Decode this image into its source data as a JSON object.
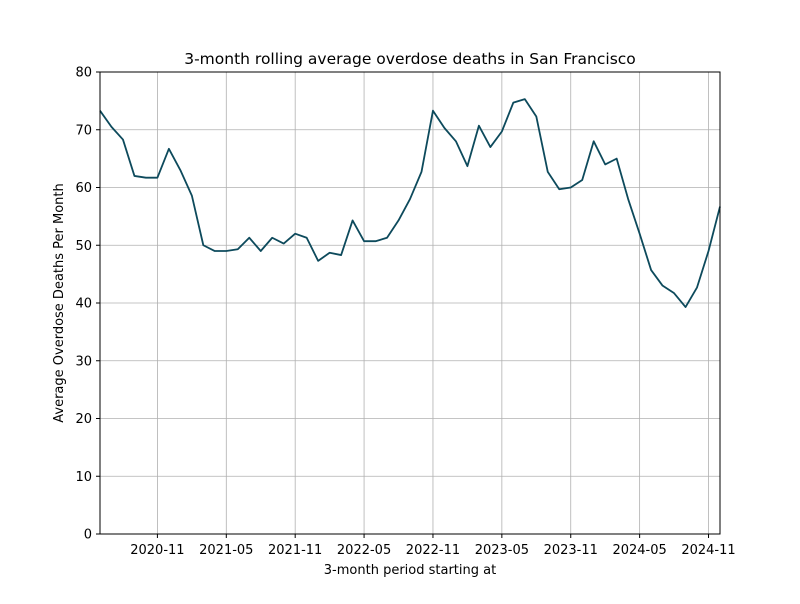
{
  "chart_data": {
    "type": "line",
    "title": "3-month rolling average overdose deaths in San Francisco",
    "xlabel": "3-month period starting at",
    "ylabel": "Average Overdose Deaths Per Month",
    "x": [
      "2020-06",
      "2020-07",
      "2020-08",
      "2020-09",
      "2020-10",
      "2020-11",
      "2020-12",
      "2021-01",
      "2021-02",
      "2021-03",
      "2021-04",
      "2021-05",
      "2021-06",
      "2021-07",
      "2021-08",
      "2021-09",
      "2021-10",
      "2021-11",
      "2021-12",
      "2022-01",
      "2022-02",
      "2022-03",
      "2022-04",
      "2022-05",
      "2022-06",
      "2022-07",
      "2022-08",
      "2022-09",
      "2022-10",
      "2022-11",
      "2022-12",
      "2023-01",
      "2023-02",
      "2023-03",
      "2023-04",
      "2023-05",
      "2023-06",
      "2023-07",
      "2023-08",
      "2023-09",
      "2023-10",
      "2023-11",
      "2023-12",
      "2024-01",
      "2024-02",
      "2024-03",
      "2024-04",
      "2024-05",
      "2024-06",
      "2024-07",
      "2024-08",
      "2024-09",
      "2024-10",
      "2024-11",
      "2024-12"
    ],
    "series": [
      {
        "name": "Average overdose deaths",
        "color": "#0d4a5c",
        "values": [
          73.3,
          70.5,
          68.3,
          62,
          61.7,
          61.7,
          66.7,
          63,
          58.6,
          50,
          49,
          49,
          49.3,
          51.3,
          49,
          51.3,
          50.3,
          52,
          51.3,
          47.3,
          48.7,
          48.3,
          54.3,
          50.7,
          50.7,
          51.3,
          54.3,
          58,
          62.7,
          73.3,
          70.3,
          68,
          63.7,
          70.7,
          67,
          69.7,
          74.7,
          75.3,
          72.3,
          62.7,
          59.7,
          60,
          61.3,
          68,
          64,
          65,
          58,
          52,
          45.7,
          43,
          41.7,
          39.3,
          42.7,
          49,
          56.7
        ]
      }
    ],
    "xlim": [
      "2020-06",
      "2024-12"
    ],
    "xticks": [
      "2020-11",
      "2021-05",
      "2021-11",
      "2022-05",
      "2022-11",
      "2023-05",
      "2023-11",
      "2024-05",
      "2024-11"
    ],
    "ylim": [
      0,
      80
    ],
    "yticks": [
      0,
      10,
      20,
      30,
      40,
      50,
      60,
      70,
      80
    ],
    "grid": true
  }
}
